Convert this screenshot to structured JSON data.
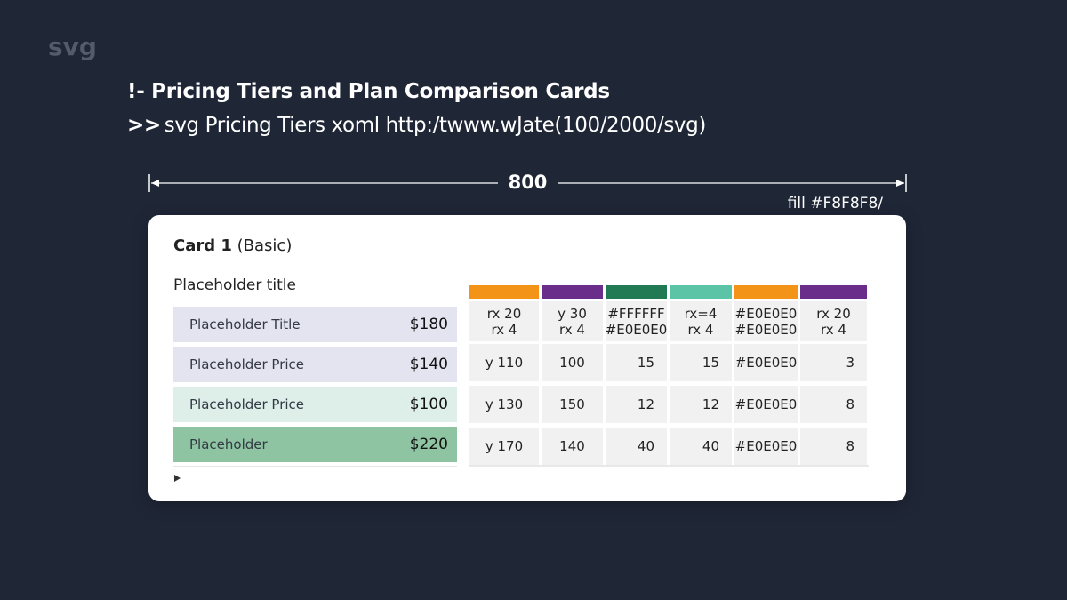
{
  "corner_label": "svg",
  "heading": "!- Pricing Tiers and Plan Comparison Cards",
  "subheading": {
    "prompt": ">>",
    "text": "svg Pricing Tiers xoml http:/twww.wJate(100/2000/svg)"
  },
  "dimension": {
    "value": "800"
  },
  "fill_note": "fill #F8F8F8/",
  "card": {
    "title_bold": "Card 1",
    "title_rest": " (Basic)",
    "section_title": "Placeholder title",
    "plans": [
      {
        "name": "Placeholder Title",
        "price": "$180",
        "color": "#e4e4f0"
      },
      {
        "name": "Placeholder Price",
        "price": "$140",
        "color": "#e4e4f0"
      },
      {
        "name": "Placeholder Price",
        "price": "$100",
        "color": "#deeee8"
      },
      {
        "name": "Placeholder",
        "price": "$220",
        "color": "#8ec4a2"
      }
    ]
  },
  "grid": {
    "column_colors": [
      "#f39419",
      "#6b2d8a",
      "#217a54",
      "#5cc4a6",
      "#f39419",
      "#6b2d8a"
    ],
    "header": [
      "rx 20\nrx 4",
      "y 30\nrx 4",
      "#FFFFFF\n#E0E0E0",
      "rx=4\nrx 4",
      "#E0E0E0\n#E0E0E0",
      "rx 20\nrx 4"
    ],
    "rows": [
      [
        "y 110",
        "100",
        "15",
        "15",
        "#E0E0E0",
        "3"
      ],
      [
        "y 130",
        "150",
        "12",
        "12",
        "#E0E0E0",
        "8"
      ],
      [
        "y 170",
        "140",
        "40",
        "40",
        "#E0E0E0",
        "8"
      ]
    ]
  }
}
